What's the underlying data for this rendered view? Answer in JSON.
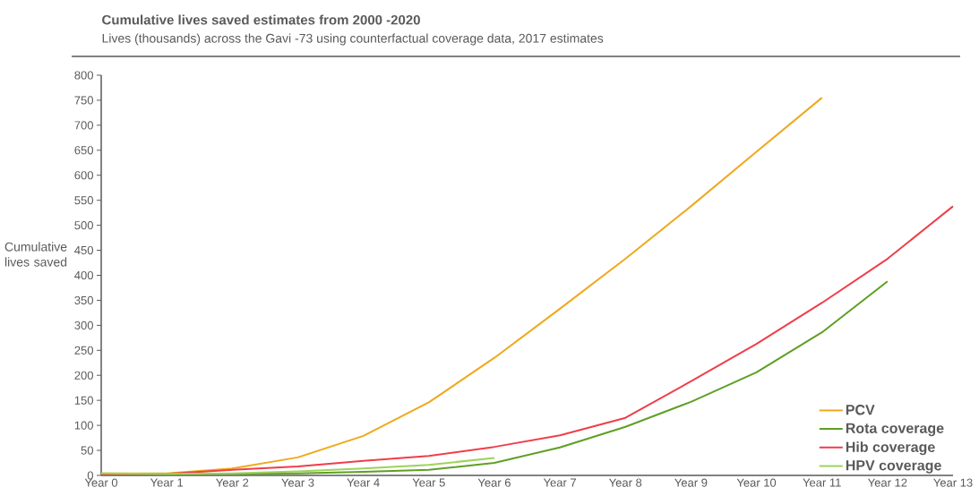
{
  "chart_data": {
    "type": "line",
    "title": "Cumulative lives saved estimates from 2000 -2020",
    "subtitle": "Lives (thousands) across the Gavi -73 using counterfactual coverage data, 2017 estimates",
    "ylabel": "Cumulative lives saved",
    "categories": [
      "Year 0",
      "Year 1",
      "Year 2",
      "Year 3",
      "Year 4",
      "Year 5",
      "Year 6",
      "Year 7",
      "Year 8",
      "Year 9",
      "Year 10",
      "Year 11",
      "Year 12",
      "Year 13"
    ],
    "series": [
      {
        "name": "PCV",
        "color": "#f0a81c",
        "values": [
          4,
          4,
          14,
          36,
          79,
          146,
          235,
          333,
          433,
          538,
          647,
          755,
          null,
          null
        ]
      },
      {
        "name": "Rota coverage",
        "color": "#5e9f24",
        "values": [
          2,
          2,
          3,
          4,
          7,
          11,
          25,
          56,
          97,
          147,
          206,
          286,
          388,
          null
        ]
      },
      {
        "name": "Hib coverage",
        "color": "#ef3e4a",
        "values": [
          2,
          3,
          11,
          18,
          29,
          39,
          57,
          80,
          115,
          188,
          263,
          345,
          433,
          538
        ]
      },
      {
        "name": "HPV coverage",
        "color": "#9dd35a",
        "values": [
          4,
          3,
          4,
          8,
          14,
          21,
          35,
          null,
          null,
          null,
          null,
          null,
          null,
          null
        ]
      }
    ],
    "ylim": [
      0,
      800
    ],
    "yticks": [
      0,
      50,
      100,
      150,
      200,
      250,
      300,
      350,
      400,
      450,
      500,
      550,
      600,
      650,
      700,
      750,
      800
    ],
    "grid": false,
    "legend": "bottom right",
    "marker": "none",
    "line_style": "solid"
  }
}
